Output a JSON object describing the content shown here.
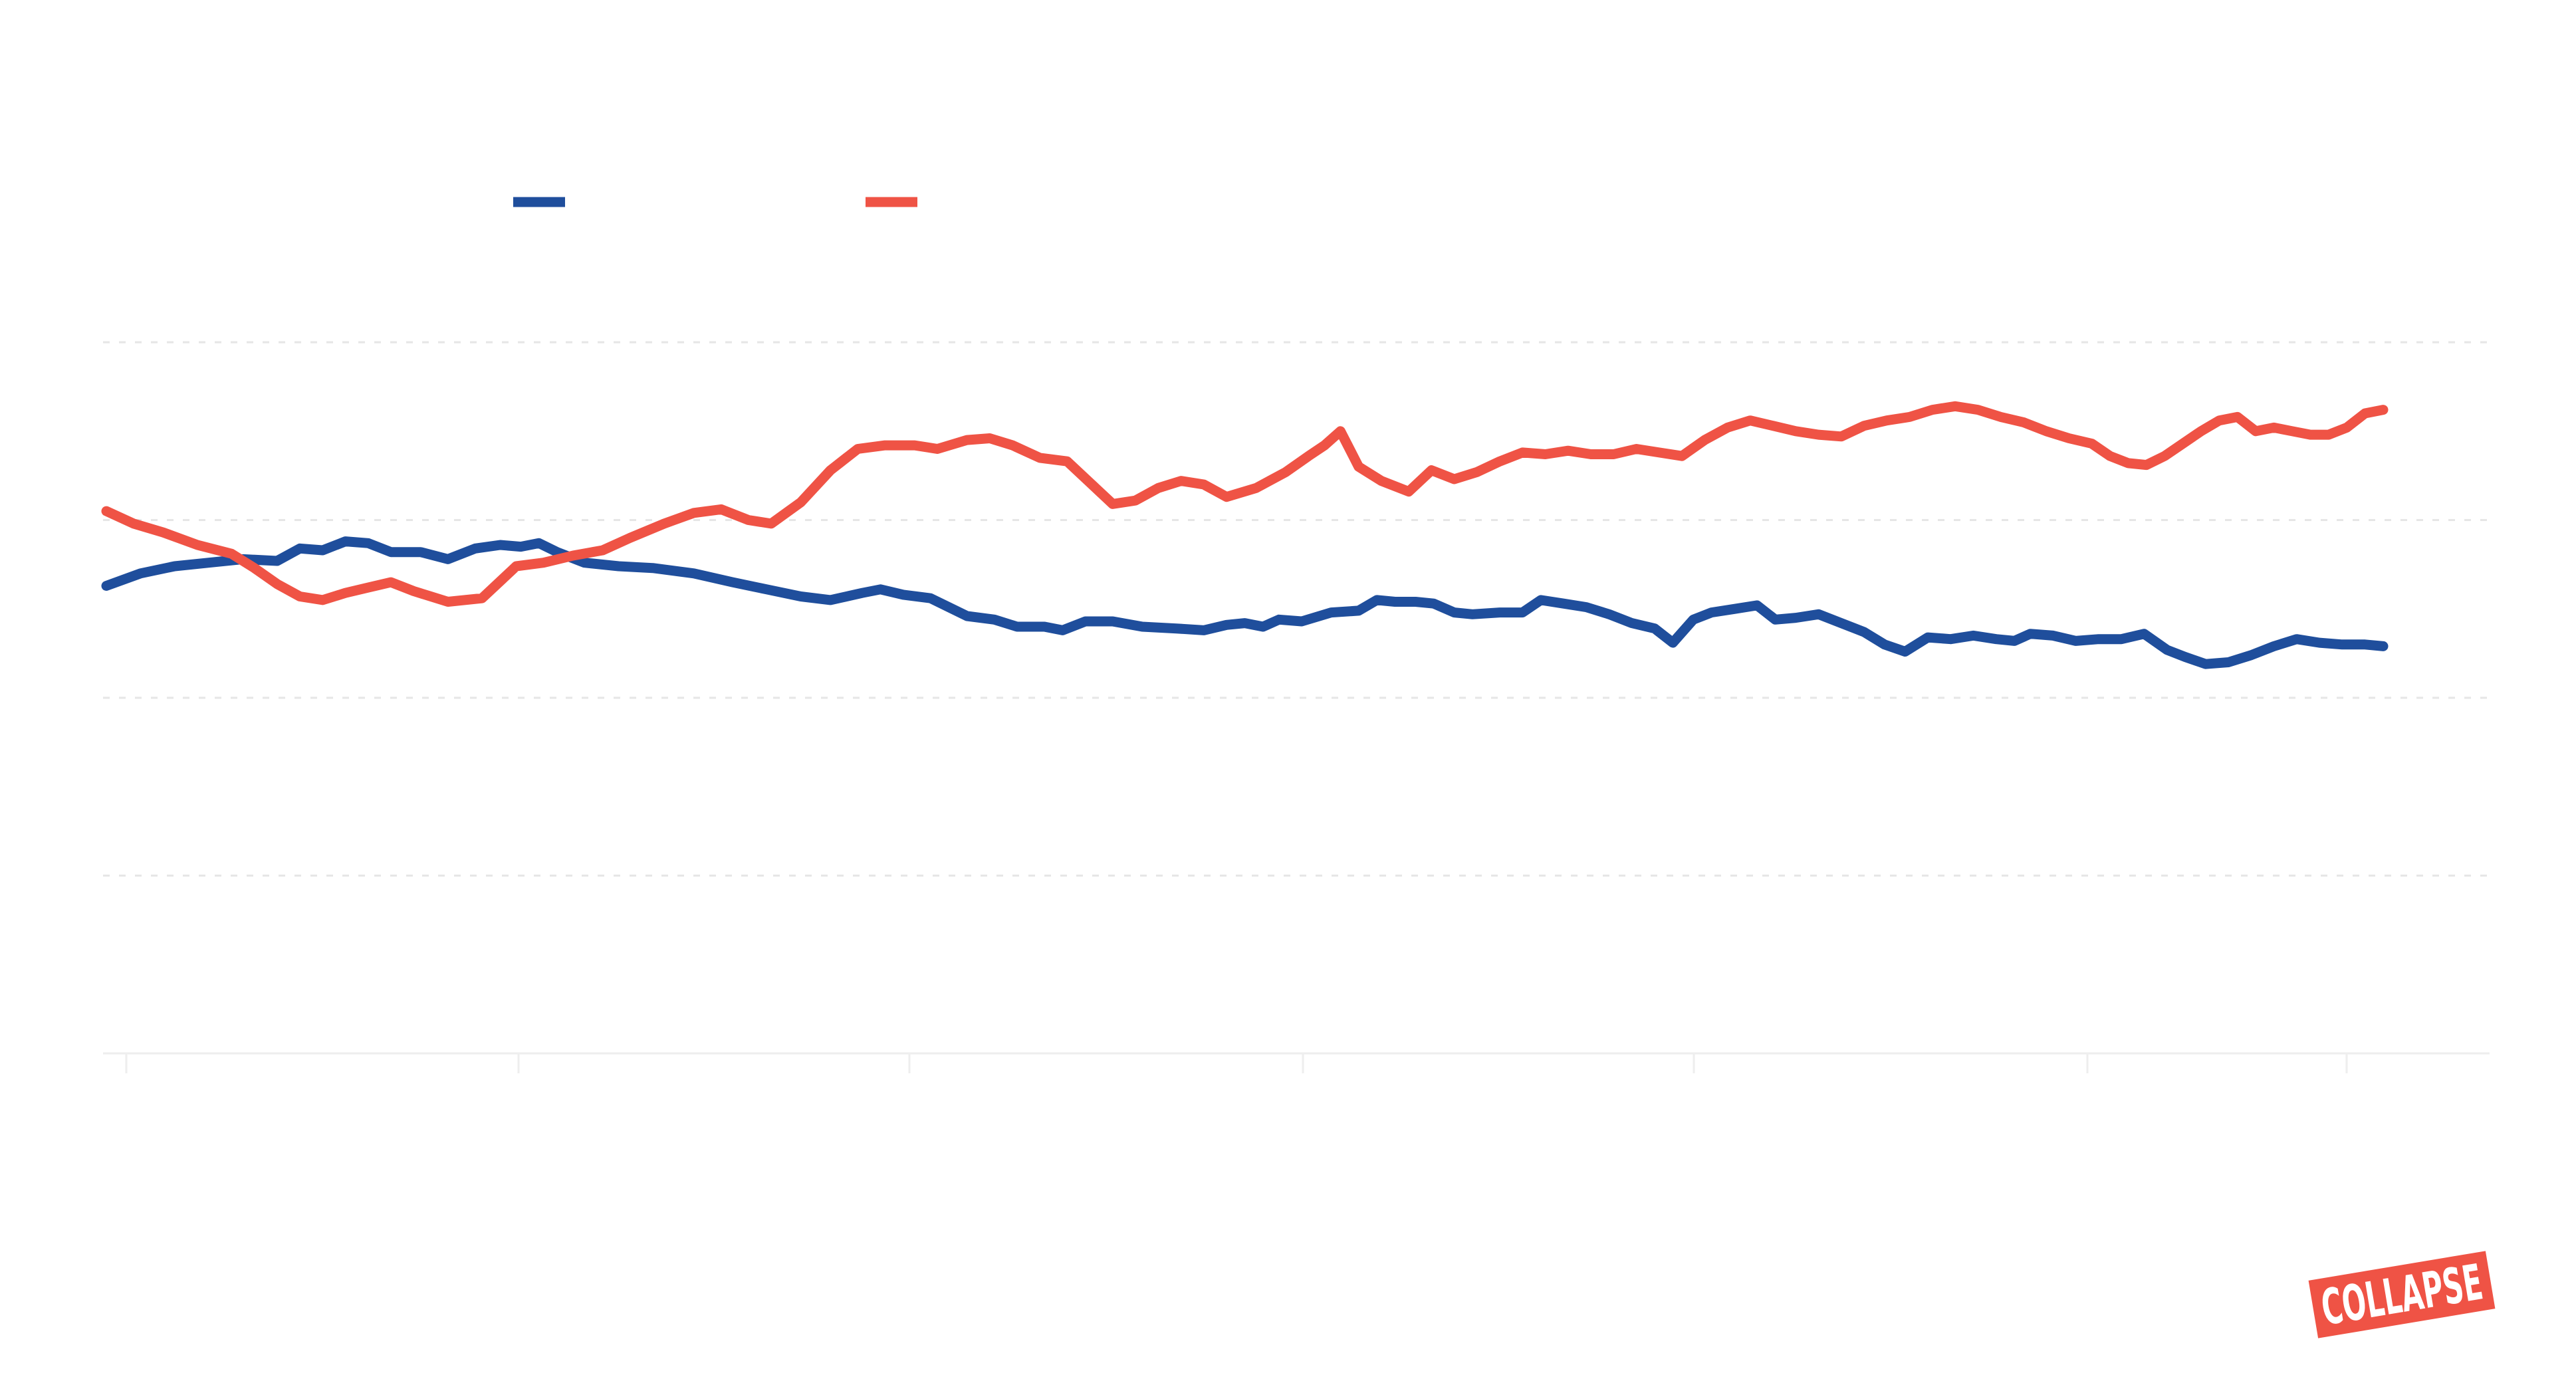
{
  "chart_data": {
    "type": "line",
    "title": "",
    "xlabel": "",
    "ylabel": "",
    "x_range": [
      0,
      1
    ],
    "ylim": [
      0,
      4
    ],
    "grid": true,
    "legend_position": "top-left",
    "series": [
      {
        "color": "#1f4e9c",
        "values": [
          [
            0.0,
            2.63
          ],
          [
            0.015,
            2.7
          ],
          [
            0.03,
            2.74
          ],
          [
            0.045,
            2.76
          ],
          [
            0.06,
            2.78
          ],
          [
            0.075,
            2.77
          ],
          [
            0.085,
            2.84
          ],
          [
            0.095,
            2.83
          ],
          [
            0.105,
            2.88
          ],
          [
            0.115,
            2.87
          ],
          [
            0.125,
            2.82
          ],
          [
            0.138,
            2.82
          ],
          [
            0.15,
            2.78
          ],
          [
            0.162,
            2.84
          ],
          [
            0.173,
            2.86
          ],
          [
            0.182,
            2.85
          ],
          [
            0.19,
            2.87
          ],
          [
            0.198,
            2.82
          ],
          [
            0.21,
            2.76
          ],
          [
            0.225,
            2.74
          ],
          [
            0.24,
            2.73
          ],
          [
            0.258,
            2.7
          ],
          [
            0.275,
            2.65
          ],
          [
            0.29,
            2.61
          ],
          [
            0.305,
            2.57
          ],
          [
            0.318,
            2.55
          ],
          [
            0.332,
            2.59
          ],
          [
            0.34,
            2.61
          ],
          [
            0.35,
            2.58
          ],
          [
            0.362,
            2.56
          ],
          [
            0.37,
            2.51
          ],
          [
            0.378,
            2.46
          ],
          [
            0.39,
            2.44
          ],
          [
            0.4,
            2.4
          ],
          [
            0.412,
            2.4
          ],
          [
            0.42,
            2.38
          ],
          [
            0.43,
            2.43
          ],
          [
            0.442,
            2.43
          ],
          [
            0.455,
            2.4
          ],
          [
            0.47,
            2.39
          ],
          [
            0.482,
            2.38
          ],
          [
            0.492,
            2.41
          ],
          [
            0.5,
            2.42
          ],
          [
            0.508,
            2.4
          ],
          [
            0.515,
            2.44
          ],
          [
            0.525,
            2.43
          ],
          [
            0.538,
            2.48
          ],
          [
            0.55,
            2.49
          ],
          [
            0.558,
            2.55
          ],
          [
            0.566,
            2.54
          ],
          [
            0.575,
            2.54
          ],
          [
            0.583,
            2.53
          ],
          [
            0.592,
            2.48
          ],
          [
            0.6,
            2.47
          ],
          [
            0.612,
            2.48
          ],
          [
            0.622,
            2.48
          ],
          [
            0.63,
            2.55
          ],
          [
            0.64,
            2.53
          ],
          [
            0.65,
            2.51
          ],
          [
            0.66,
            2.47
          ],
          [
            0.67,
            2.42
          ],
          [
            0.68,
            2.39
          ],
          [
            0.688,
            2.31
          ],
          [
            0.697,
            2.44
          ],
          [
            0.705,
            2.48
          ],
          [
            0.715,
            2.5
          ],
          [
            0.725,
            2.52
          ],
          [
            0.733,
            2.44
          ],
          [
            0.742,
            2.45
          ],
          [
            0.752,
            2.47
          ],
          [
            0.762,
            2.42
          ],
          [
            0.772,
            2.37
          ],
          [
            0.781,
            2.3
          ],
          [
            0.79,
            2.26
          ],
          [
            0.8,
            2.34
          ],
          [
            0.81,
            2.33
          ],
          [
            0.82,
            2.35
          ],
          [
            0.83,
            2.33
          ],
          [
            0.838,
            2.32
          ],
          [
            0.845,
            2.36
          ],
          [
            0.855,
            2.35
          ],
          [
            0.865,
            2.32
          ],
          [
            0.875,
            2.33
          ],
          [
            0.885,
            2.33
          ],
          [
            0.895,
            2.36
          ],
          [
            0.905,
            2.27
          ],
          [
            0.913,
            2.23
          ],
          [
            0.922,
            2.19
          ],
          [
            0.932,
            2.2
          ],
          [
            0.942,
            2.24
          ],
          [
            0.952,
            2.29
          ],
          [
            0.962,
            2.33
          ],
          [
            0.972,
            2.31
          ],
          [
            0.982,
            2.3
          ],
          [
            0.992,
            2.3
          ],
          [
            1.0,
            2.29
          ]
        ]
      },
      {
        "color": "#ef5345",
        "values": [
          [
            0.0,
            3.05
          ],
          [
            0.012,
            2.98
          ],
          [
            0.025,
            2.93
          ],
          [
            0.04,
            2.86
          ],
          [
            0.055,
            2.81
          ],
          [
            0.065,
            2.73
          ],
          [
            0.075,
            2.64
          ],
          [
            0.085,
            2.57
          ],
          [
            0.095,
            2.55
          ],
          [
            0.105,
            2.59
          ],
          [
            0.115,
            2.62
          ],
          [
            0.125,
            2.65
          ],
          [
            0.135,
            2.6
          ],
          [
            0.15,
            2.54
          ],
          [
            0.165,
            2.56
          ],
          [
            0.18,
            2.74
          ],
          [
            0.192,
            2.76
          ],
          [
            0.205,
            2.8
          ],
          [
            0.218,
            2.83
          ],
          [
            0.23,
            2.9
          ],
          [
            0.245,
            2.98
          ],
          [
            0.258,
            3.04
          ],
          [
            0.27,
            3.06
          ],
          [
            0.282,
            3.0
          ],
          [
            0.292,
            2.98
          ],
          [
            0.305,
            3.1
          ],
          [
            0.318,
            3.28
          ],
          [
            0.33,
            3.4
          ],
          [
            0.342,
            3.42
          ],
          [
            0.355,
            3.42
          ],
          [
            0.365,
            3.4
          ],
          [
            0.378,
            3.45
          ],
          [
            0.388,
            3.46
          ],
          [
            0.398,
            3.42
          ],
          [
            0.41,
            3.35
          ],
          [
            0.422,
            3.33
          ],
          [
            0.432,
            3.21
          ],
          [
            0.442,
            3.09
          ],
          [
            0.452,
            3.11
          ],
          [
            0.462,
            3.18
          ],
          [
            0.472,
            3.22
          ],
          [
            0.482,
            3.2
          ],
          [
            0.492,
            3.13
          ],
          [
            0.505,
            3.18
          ],
          [
            0.518,
            3.27
          ],
          [
            0.528,
            3.36
          ],
          [
            0.535,
            3.42
          ],
          [
            0.542,
            3.5
          ],
          [
            0.55,
            3.3
          ],
          [
            0.56,
            3.22
          ],
          [
            0.572,
            3.16
          ],
          [
            0.582,
            3.28
          ],
          [
            0.592,
            3.23
          ],
          [
            0.602,
            3.27
          ],
          [
            0.612,
            3.33
          ],
          [
            0.622,
            3.38
          ],
          [
            0.632,
            3.37
          ],
          [
            0.642,
            3.39
          ],
          [
            0.652,
            3.37
          ],
          [
            0.662,
            3.37
          ],
          [
            0.672,
            3.4
          ],
          [
            0.682,
            3.38
          ],
          [
            0.692,
            3.36
          ],
          [
            0.702,
            3.45
          ],
          [
            0.712,
            3.52
          ],
          [
            0.722,
            3.56
          ],
          [
            0.732,
            3.53
          ],
          [
            0.742,
            3.5
          ],
          [
            0.752,
            3.48
          ],
          [
            0.762,
            3.47
          ],
          [
            0.772,
            3.53
          ],
          [
            0.782,
            3.56
          ],
          [
            0.792,
            3.58
          ],
          [
            0.802,
            3.62
          ],
          [
            0.812,
            3.64
          ],
          [
            0.822,
            3.62
          ],
          [
            0.832,
            3.58
          ],
          [
            0.842,
            3.55
          ],
          [
            0.852,
            3.5
          ],
          [
            0.862,
            3.46
          ],
          [
            0.872,
            3.43
          ],
          [
            0.88,
            3.36
          ],
          [
            0.888,
            3.32
          ],
          [
            0.896,
            3.31
          ],
          [
            0.904,
            3.36
          ],
          [
            0.912,
            3.43
          ],
          [
            0.92,
            3.5
          ],
          [
            0.928,
            3.56
          ],
          [
            0.936,
            3.58
          ],
          [
            0.944,
            3.5
          ],
          [
            0.952,
            3.52
          ],
          [
            0.96,
            3.5
          ],
          [
            0.968,
            3.48
          ],
          [
            0.976,
            3.48
          ],
          [
            0.984,
            3.52
          ],
          [
            0.992,
            3.6
          ],
          [
            1.0,
            3.62
          ]
        ]
      }
    ]
  },
  "logo": {
    "text": "COLLAPSE",
    "color": "#ef5345"
  }
}
